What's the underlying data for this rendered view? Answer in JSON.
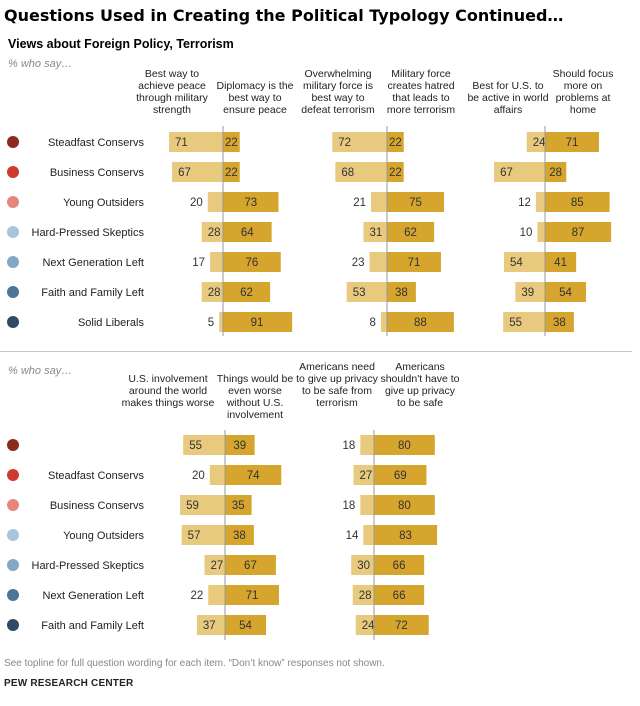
{
  "title": "Questions Used in Creating the Political Typology Continued…",
  "subtitle": "Views about Foreign Policy, Terrorism",
  "who_says": "% who say…",
  "footnote": "See topline for full question wording for each item. “Don’t know” responses not shown.",
  "source": "PEW RESEARCH CENTER",
  "colors": {
    "light": "#e8ca7e",
    "dark": "#d5a52d",
    "axis": "#999999"
  },
  "chart_data": [
    {
      "type": "bar",
      "title": "Views about Foreign Policy, Terrorism",
      "groups": [
        {
          "name": "Steadfast Conservs",
          "dot": "#8b2a1f"
        },
        {
          "name": "Business Conservs",
          "dot": "#cc3b2d"
        },
        {
          "name": "Young Outsiders",
          "dot": "#e8857a"
        },
        {
          "name": "Hard-Pressed Skeptics",
          "dot": "#a8c5dc"
        },
        {
          "name": "Next Generation Left",
          "dot": "#82a8c6"
        },
        {
          "name": "Faith and Family Left",
          "dot": "#4e7596"
        },
        {
          "name": "Solid Liberals",
          "dot": "#2f4b63"
        }
      ],
      "pairs": [
        {
          "left_label": "Best way to achieve peace through military strength",
          "right_label": "Diplomacy is the best way to ensure peace",
          "left": [
            71,
            67,
            20,
            28,
            17,
            28,
            5
          ],
          "right": [
            22,
            22,
            73,
            64,
            76,
            62,
            91
          ]
        },
        {
          "left_label": "Overwhelming military force is best way to defeat terrorism",
          "right_label": "Military force creates hatred that leads to more terrorism",
          "left": [
            72,
            68,
            21,
            31,
            23,
            53,
            8
          ],
          "right": [
            22,
            22,
            75,
            62,
            71,
            38,
            88
          ]
        },
        {
          "left_label": "Best for U.S. to be active in world affairs",
          "right_label": "Should focus more on problems at home",
          "left": [
            24,
            67,
            12,
            10,
            54,
            39,
            55
          ],
          "right": [
            71,
            28,
            85,
            87,
            41,
            54,
            38
          ]
        }
      ]
    },
    {
      "type": "bar",
      "groups": [
        {
          "name": "",
          "dot": "#8b2a1f"
        },
        {
          "name": "Steadfast Conservs",
          "dot": "#cc3b2d"
        },
        {
          "name": "Business Conservs",
          "dot": "#e8857a"
        },
        {
          "name": "Young Outsiders",
          "dot": "#a8c5dc"
        },
        {
          "name": "Hard-Pressed Skeptics",
          "dot": "#82a8c6"
        },
        {
          "name": "Next Generation Left",
          "dot": "#4e7596"
        },
        {
          "name": "Faith and Family Left",
          "dot": "#2f4b63"
        }
      ],
      "pairs": [
        {
          "left_label": "U.S. involvement around the world makes things worse",
          "right_label": "Things would be even worse without U.S. involvement",
          "left": [
            55,
            20,
            59,
            57,
            27,
            22,
            37
          ],
          "right": [
            39,
            74,
            35,
            38,
            67,
            71,
            54
          ]
        },
        {
          "left_label": "Americans need to give up privacy to be safe from terrorism",
          "right_label": "Americans shouldn't have to give up privacy to be safe",
          "left": [
            18,
            27,
            18,
            14,
            30,
            28,
            24
          ],
          "right": [
            80,
            69,
            80,
            83,
            66,
            66,
            72
          ]
        }
      ]
    }
  ]
}
